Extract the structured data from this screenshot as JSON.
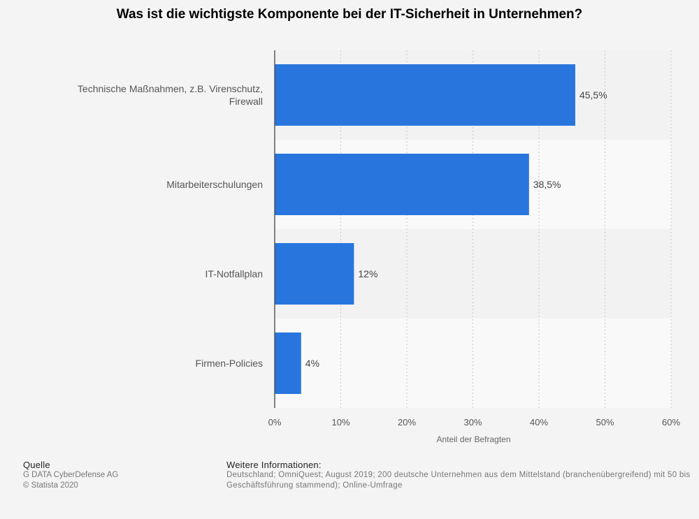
{
  "chart_data": {
    "type": "bar",
    "orientation": "horizontal",
    "title": "Was ist die wichtigste Komponente bei der IT-Sicherheit in Unternehmen?",
    "categories": [
      [
        "Technische Maßnahmen, z.B. Virenschutz,",
        "Firewall"
      ],
      [
        "Mitarbeiterschulungen"
      ],
      [
        "IT-Notfallplan"
      ],
      [
        "Firmen-Policies"
      ]
    ],
    "values": [
      45.5,
      38.5,
      12,
      4
    ],
    "value_labels": [
      "45,5%",
      "38,5%",
      "12%",
      "4%"
    ],
    "xlabel": "Anteil der Befragten",
    "xlim": [
      0,
      60
    ],
    "xticks": [
      "0%",
      "10%",
      "20%",
      "30%",
      "40%",
      "50%",
      "60%"
    ],
    "grid": true,
    "bar_color": "#2876dd"
  },
  "footer": {
    "source_heading": "Quelle",
    "source_lines": [
      "G DATA CyberDefense AG",
      "© Statista 2020"
    ],
    "info_heading": "Weitere Informationen:",
    "info_lines": [
      "Deutschland; OmniQuest; August 2019; 200 deutsche Unternehmen aus dem Mittelstand (branchenübergreifend) mit 50 bis",
      "Geschäftsführung stammend); Online-Umfrage"
    ]
  }
}
